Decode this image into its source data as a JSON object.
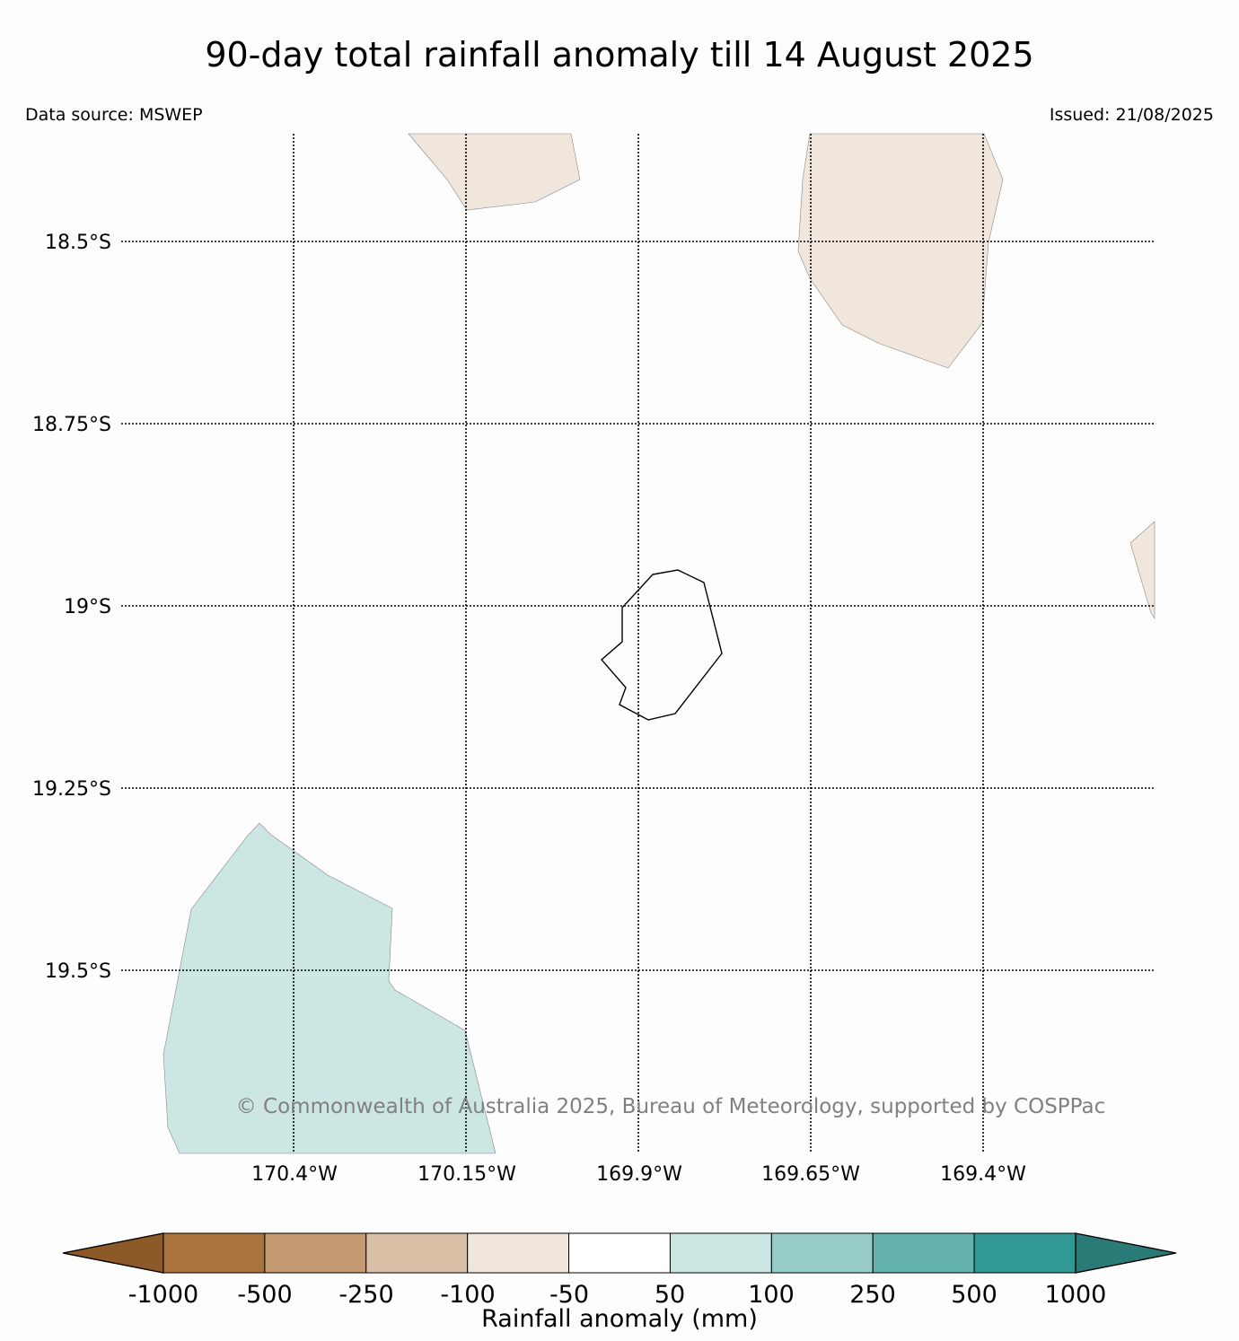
{
  "header": {
    "title": "90-day total rainfall anomaly till 14 August 2025",
    "data_source": "Data source: MSWEP",
    "issued": "Issued: 21/08/2025"
  },
  "map": {
    "lat_labels": [
      "18.5°S",
      "18.75°S",
      "19°S",
      "19.25°S",
      "19.5°S"
    ],
    "lon_labels": [
      "170.4°W",
      "170.15°W",
      "169.9°W",
      "169.65°W",
      "169.4°W"
    ],
    "copyright": "© Commonwealth of Australia 2025, Bureau of Meteorology, supported by COSPPac",
    "island_outline_color": "#000000",
    "anomaly_regions": [
      {
        "name": "north-dry-patch",
        "category": "-100 to -50",
        "color": "#f0e6dc"
      },
      {
        "name": "northeast-dry-patch",
        "category": "-100 to -50",
        "color": "#f0e6dc"
      },
      {
        "name": "east-edge-dry-patch",
        "category": "-100 to -50",
        "color": "#f0e6dc"
      },
      {
        "name": "southwest-wet-patch",
        "category": "50 to 100",
        "color": "#cce6e4"
      }
    ]
  },
  "colorbar": {
    "title": "Rainfall anomaly (mm)",
    "tick_labels": [
      "-1000",
      "-500",
      "-250",
      "-100",
      "-50",
      "50",
      "100",
      "250",
      "500",
      "1000"
    ],
    "extend_low_color": "#8c5a28",
    "extend_high_color": "#2a7a78",
    "colors": [
      "#a8733c",
      "#c49a70",
      "#d9bfa6",
      "#f0e6dc",
      "#ffffff",
      "#cce6e4",
      "#97ccc9",
      "#63b2b0",
      "#329894"
    ]
  }
}
